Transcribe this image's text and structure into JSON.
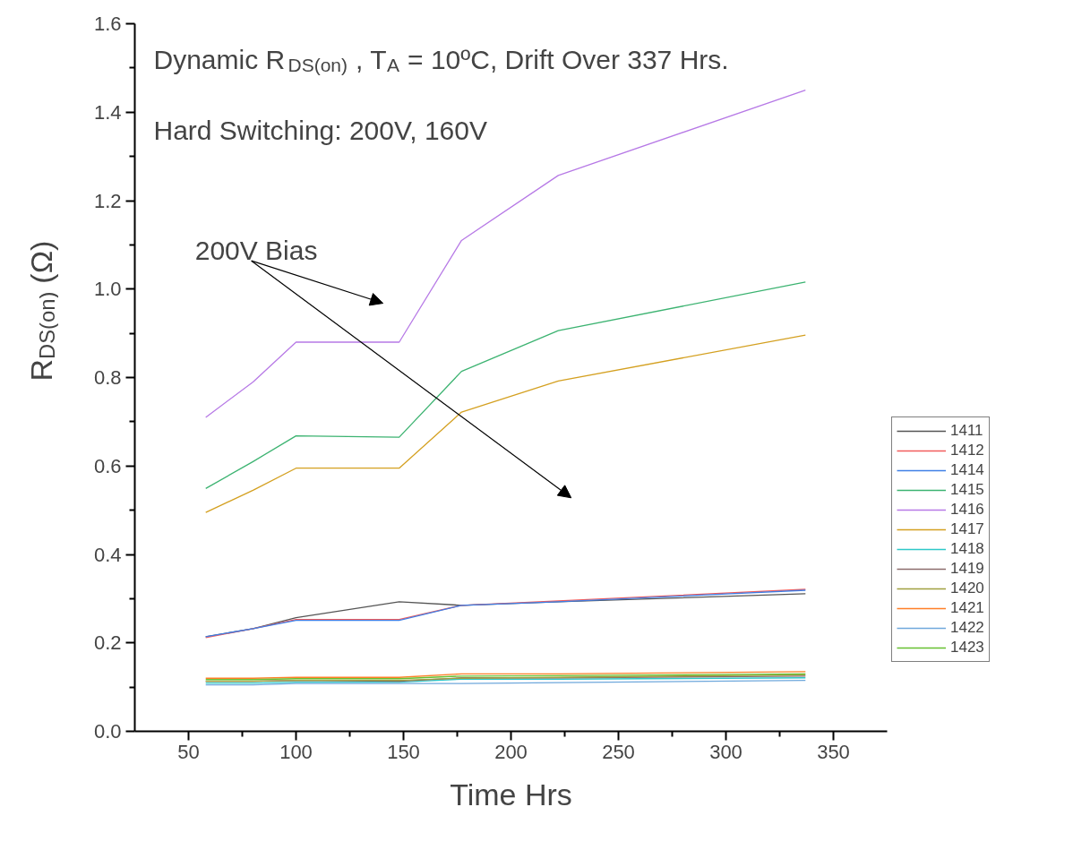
{
  "chart_data": {
    "type": "line",
    "xlabel": "Time Hrs",
    "ylabel": "R$_{DS(on)}$ (Ω)",
    "x": [
      58,
      80,
      100,
      148,
      177,
      222,
      337
    ],
    "xlim": [
      25,
      375
    ],
    "xticks": [
      50,
      100,
      150,
      200,
      250,
      300,
      350
    ],
    "ylim": [
      0,
      1.6
    ],
    "yticks": [
      {
        "value": 0,
        "label": "0.0"
      },
      0.2,
      0.4,
      0.6,
      0.8,
      {
        "value": 1,
        "label": "1.0"
      },
      1.2,
      1.4,
      1.6
    ],
    "grid": false,
    "legend": "bottom right",
    "marker": "none",
    "line_style": "solid",
    "annotations": [
      "Dynamic R$_{DS(on)}$, T$_{A}$ = 10ºC, Drift Over  337 Hrs.",
      "Hard Switching: 200V, 160V",
      "200V Bias"
    ],
    "series": [
      {
        "name": "1411",
        "color": "#555555",
        "values": [
          0.214,
          0.232,
          0.257,
          0.293,
          0.285,
          0.293,
          0.311
        ]
      },
      {
        "name": "1412",
        "color": "#f25c5c",
        "values": [
          0.212,
          0.232,
          0.253,
          0.253,
          0.285,
          0.295,
          0.321
        ]
      },
      {
        "name": "1414",
        "color": "#3f7fe6",
        "values": [
          0.214,
          0.232,
          0.251,
          0.251,
          0.285,
          0.293,
          0.319
        ]
      },
      {
        "name": "1415",
        "color": "#3cb371",
        "values": [
          0.549,
          0.61,
          0.668,
          0.665,
          0.814,
          0.906,
          1.016
        ]
      },
      {
        "name": "1416",
        "color": "#b77ae6",
        "values": [
          0.71,
          0.79,
          0.88,
          0.88,
          1.11,
          1.257,
          1.45
        ]
      },
      {
        "name": "1417",
        "color": "#d4a020",
        "values": [
          0.495,
          0.545,
          0.595,
          0.595,
          0.722,
          0.792,
          0.896
        ]
      },
      {
        "name": "1418",
        "color": "#2ec8c8",
        "values": [
          0.109,
          0.109,
          0.111,
          0.111,
          0.118,
          0.118,
          0.121
        ]
      },
      {
        "name": "1419",
        "color": "#8b6b6b",
        "values": [
          0.113,
          0.113,
          0.115,
          0.113,
          0.121,
          0.121,
          0.125
        ]
      },
      {
        "name": "1420",
        "color": "#a0a040",
        "values": [
          0.113,
          0.113,
          0.115,
          0.115,
          0.12,
          0.122,
          0.128
        ]
      },
      {
        "name": "1421",
        "color": "#ff7f27",
        "values": [
          0.12,
          0.12,
          0.122,
          0.122,
          0.13,
          0.13,
          0.135
        ]
      },
      {
        "name": "1422",
        "color": "#6fa8dc",
        "values": [
          0.105,
          0.105,
          0.108,
          0.108,
          0.108,
          0.11,
          0.115
        ]
      },
      {
        "name": "1423",
        "color": "#66c030",
        "values": [
          0.117,
          0.117,
          0.119,
          0.119,
          0.125,
          0.126,
          0.13
        ]
      }
    ]
  }
}
